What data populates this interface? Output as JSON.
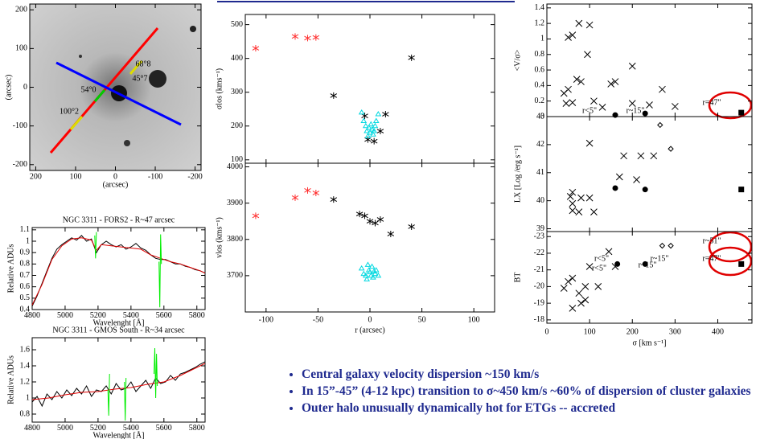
{
  "chart_data": [
    {
      "type": "image",
      "xlabel": "(arcsec)",
      "ylabel": "(arcsec)",
      "xlim": [
        215,
        -215
      ],
      "ylim": [
        -215,
        215
      ],
      "xticks": [
        200,
        100,
        0,
        -100,
        -200
      ],
      "yticks": [
        -200,
        -100,
        0,
        100,
        200
      ],
      "labels": [
        "68°8",
        "45°7",
        "54°0",
        "100°2"
      ]
    },
    {
      "type": "line",
      "title": "NGC 3311 - FORS2 - R~47 arcsec",
      "xlabel": "Wavelenght [Å]",
      "ylabel": "Relative ADUs",
      "xlim": [
        4800,
        5850
      ],
      "ylim": [
        0.4,
        1.12
      ],
      "xticks": [
        4800,
        5000,
        5200,
        5400,
        5600,
        5800
      ],
      "yticks": [
        0.4,
        0.5,
        0.6,
        0.7,
        0.8,
        0.9,
        1.0,
        1.1
      ],
      "series": [
        {
          "color": "#000000",
          "x": [
            4800,
            4830,
            4860,
            4890,
            4920,
            4950,
            4980,
            5010,
            5040,
            5070,
            5100,
            5130,
            5160,
            5190,
            5220,
            5250,
            5280,
            5310,
            5340,
            5370,
            5400,
            5430,
            5460,
            5490,
            5520,
            5550,
            5580,
            5610,
            5640,
            5670,
            5700,
            5730,
            5760,
            5790,
            5820,
            5850
          ],
          "y": [
            0.43,
            0.52,
            0.63,
            0.74,
            0.85,
            0.93,
            0.97,
            1.0,
            1.03,
            1.01,
            1.05,
            1.0,
            1.02,
            0.9,
            0.97,
            1.0,
            0.97,
            0.95,
            0.97,
            0.93,
            0.95,
            0.98,
            0.94,
            0.92,
            0.88,
            0.85,
            0.84,
            0.84,
            0.82,
            0.8,
            0.8,
            0.78,
            0.77,
            0.75,
            0.74,
            0.72
          ]
        },
        {
          "color": "#e00000",
          "x": [
            4800,
            4860,
            4920,
            4980,
            5040,
            5100,
            5160,
            5190,
            5220,
            5280,
            5340,
            5400,
            5460,
            5520,
            5580,
            5640,
            5700,
            5760,
            5820,
            5850
          ],
          "y": [
            0.44,
            0.62,
            0.84,
            0.96,
            1.02,
            1.03,
            1.01,
            0.92,
            0.97,
            0.96,
            0.95,
            0.94,
            0.93,
            0.88,
            0.85,
            0.82,
            0.8,
            0.77,
            0.74,
            0.72
          ]
        },
        {
          "color": "#00ee00",
          "x": [
            5180,
            5185,
            5190,
            null,
            5570,
            5575,
            5580,
            5585
          ],
          "y": [
            1.05,
            0.85,
            1.08,
            null,
            0.82,
            0.42,
            1.06,
            0.8
          ]
        }
      ]
    },
    {
      "type": "line",
      "title": "NGC 3311 - GMOS South - R~34 arcsec",
      "xlabel": "Wavelenght [Å]",
      "ylabel": "Relative ADUs",
      "xlim": [
        4800,
        5850
      ],
      "ylim": [
        0.7,
        1.75
      ],
      "xticks": [
        4800,
        5000,
        5200,
        5400,
        5600,
        5800
      ],
      "yticks": [
        0.8,
        1.0,
        1.2,
        1.4,
        1.6
      ],
      "series": [
        {
          "color": "#000000",
          "x": [
            4800,
            4830,
            4860,
            4890,
            4920,
            4950,
            4980,
            5010,
            5040,
            5070,
            5100,
            5130,
            5160,
            5190,
            5220,
            5250,
            5280,
            5310,
            5340,
            5370,
            5400,
            5430,
            5460,
            5490,
            5520,
            5550,
            5580,
            5610,
            5640,
            5670,
            5700,
            5730,
            5760,
            5790,
            5820,
            5850
          ],
          "y": [
            0.95,
            1.02,
            0.9,
            1.05,
            0.98,
            1.08,
            1.0,
            1.1,
            1.03,
            1.12,
            1.05,
            1.15,
            1.02,
            1.1,
            1.08,
            1.15,
            1.05,
            1.18,
            1.1,
            1.12,
            1.2,
            1.08,
            1.15,
            1.22,
            1.12,
            1.25,
            1.18,
            1.2,
            1.28,
            1.22,
            1.3,
            1.32,
            1.35,
            1.38,
            1.42,
            1.45
          ]
        },
        {
          "color": "#e00000",
          "x": [
            4800,
            4900,
            5000,
            5100,
            5200,
            5300,
            5400,
            5500,
            5600,
            5700,
            5800,
            5850
          ],
          "y": [
            0.98,
            1.0,
            1.04,
            1.07,
            1.08,
            1.11,
            1.13,
            1.17,
            1.2,
            1.28,
            1.38,
            1.43
          ]
        },
        {
          "color": "#00ee00",
          "x": [
            5260,
            5265,
            5270,
            null,
            5360,
            5365,
            5370,
            null,
            5540,
            5545,
            5550,
            5555,
            5560
          ],
          "y": [
            1.1,
            0.78,
            1.3,
            null,
            1.2,
            0.72,
            1.25,
            null,
            1.3,
            1.62,
            1.0,
            1.55,
            1.15
          ]
        }
      ]
    },
    {
      "type": "scatter",
      "ylabel": "σlos (kms⁻¹)",
      "show_xtick_labels": false,
      "xlim": [
        -120,
        120
      ],
      "ylim": [
        90,
        530
      ],
      "xticks": [
        -100,
        -50,
        0,
        50,
        100
      ],
      "yticks": [
        100,
        200,
        300,
        400,
        500
      ],
      "series": [
        {
          "color": "#ff3030",
          "marker": "star",
          "x": [
            -110,
            -72,
            -60,
            -52
          ],
          "y": [
            430,
            465,
            460,
            462
          ]
        },
        {
          "color": "#000000",
          "marker": "star",
          "x": [
            -35,
            -5,
            -2,
            4,
            10,
            15,
            40
          ],
          "y": [
            290,
            230,
            160,
            155,
            185,
            235,
            402
          ]
        },
        {
          "color": "#00d8e0",
          "marker": "triangle",
          "x": [
            -8,
            -6,
            -4,
            -3,
            -1,
            0,
            1,
            2,
            3,
            5,
            6,
            8,
            -2,
            4
          ],
          "y": [
            240,
            215,
            200,
            185,
            195,
            180,
            205,
            190,
            175,
            200,
            215,
            235,
            170,
            185
          ]
        }
      ]
    },
    {
      "type": "scatter",
      "xlabel": "r (arcsec)",
      "ylabel": "vlos (kms⁻¹)",
      "xlim": [
        -120,
        120
      ],
      "ylim": [
        3600,
        4010
      ],
      "xticks": [
        -100,
        -50,
        0,
        50,
        100
      ],
      "yticks": [
        3700,
        3800,
        3900,
        4000
      ],
      "series": [
        {
          "color": "#ff3030",
          "marker": "star",
          "x": [
            -110,
            -72,
            -60,
            -52
          ],
          "y": [
            3865,
            3915,
            3935,
            3928
          ]
        },
        {
          "color": "#000000",
          "marker": "star",
          "x": [
            -35,
            -10,
            -5,
            0,
            5,
            10,
            20,
            40
          ],
          "y": [
            3910,
            3870,
            3865,
            3850,
            3845,
            3855,
            3815,
            3835
          ]
        },
        {
          "color": "#00d8e0",
          "marker": "triangle",
          "x": [
            -8,
            -6,
            -4,
            -3,
            -1,
            0,
            1,
            2,
            3,
            5,
            6,
            8,
            -2,
            4
          ],
          "y": [
            3720,
            3705,
            3700,
            3690,
            3715,
            3710,
            3700,
            3725,
            3695,
            3705,
            3715,
            3700,
            3730,
            3712
          ]
        }
      ]
    },
    {
      "type": "scatter",
      "ylabel": "<V/σ>",
      "show_xtick_labels": false,
      "xlim": [
        0,
        480
      ],
      "ylim": [
        0,
        1.45
      ],
      "xticks": [
        0,
        100,
        200,
        300,
        400
      ],
      "yticks": [
        0.0,
        0.2,
        0.4,
        0.6,
        0.8,
        1.0,
        1.2,
        1.4
      ],
      "labels": [
        "r=47\"",
        "r<5\"",
        "r~15\""
      ],
      "series": [
        {
          "color": "#000000",
          "marker": "x",
          "x": [
            50,
            60,
            75,
            95,
            100,
            70,
            80,
            50,
            40,
            60,
            45,
            110,
            150,
            160,
            200,
            270,
            240,
            200,
            130,
            300
          ],
          "y": [
            1.02,
            1.05,
            1.2,
            0.8,
            1.18,
            0.48,
            0.45,
            0.35,
            0.3,
            0.18,
            0.17,
            0.2,
            0.42,
            0.45,
            0.65,
            0.35,
            0.15,
            0.17,
            0.12,
            0.13
          ]
        },
        {
          "color": "#000000",
          "marker": "dot",
          "x": [
            160,
            230
          ],
          "y": [
            0.02,
            0.04
          ]
        },
        {
          "color": "#000000",
          "marker": "square",
          "x": [
            455
          ],
          "y": [
            0.05
          ]
        }
      ]
    },
    {
      "type": "scatter",
      "ylabel": "LX [Log /erg s⁻¹]",
      "show_xtick_labels": false,
      "xlim": [
        0,
        480
      ],
      "ylim": [
        38.9,
        43
      ],
      "xticks": [
        0,
        100,
        200,
        300,
        400
      ],
      "yticks": [
        39,
        40,
        41,
        42,
        43
      ],
      "labels": [
        "r~51\"",
        "r<5\"",
        "r~15\""
      ],
      "series": [
        {
          "color": "#000000",
          "marker": "x",
          "x": [
            100,
            180,
            220,
            250,
            170,
            210,
            60,
            55,
            80,
            100,
            60,
            60,
            75,
            110
          ],
          "y": [
            42.05,
            41.6,
            41.6,
            41.6,
            40.85,
            40.75,
            40.3,
            40.15,
            40.1,
            40.1,
            39.9,
            39.65,
            39.6,
            39.6
          ]
        },
        {
          "color": "#000000",
          "marker": "diamond",
          "x": [
            265,
            290
          ],
          "y": [
            42.7,
            41.85
          ]
        },
        {
          "color": "#000000",
          "marker": "dot",
          "x": [
            160,
            230
          ],
          "y": [
            40.45,
            40.4
          ]
        },
        {
          "color": "#000000",
          "marker": "square",
          "x": [
            455
          ],
          "y": [
            40.4
          ]
        }
      ]
    },
    {
      "type": "scatter",
      "xlabel": "σ [km s⁻¹]",
      "ylabel": "BT",
      "xlim": [
        0,
        480
      ],
      "ylim": [
        -17.8,
        -23.3
      ],
      "xticks": [
        0,
        100,
        200,
        300,
        400
      ],
      "yticks": [
        -18,
        -19,
        -20,
        -21,
        -22,
        -23
      ],
      "labels": [
        "r=47\"",
        "r<5\"",
        "r~15\""
      ],
      "series": [
        {
          "color": "#000000",
          "marker": "x",
          "x": [
            145,
            100,
            60,
            50,
            90,
            120,
            40,
            75,
            80,
            90,
            60,
            160
          ],
          "y": [
            -22.1,
            -21.2,
            -20.5,
            -20.3,
            -20.0,
            -20.0,
            -19.9,
            -19.6,
            -19.0,
            -19.2,
            -18.7,
            -21.2
          ]
        },
        {
          "color": "#000000",
          "marker": "diamond",
          "x": [
            270,
            290
          ],
          "y": [
            -22.45,
            -22.45
          ]
        },
        {
          "color": "#000000",
          "marker": "dot",
          "x": [
            165,
            230
          ],
          "y": [
            -21.35,
            -21.35
          ]
        },
        {
          "color": "#000000",
          "marker": "square",
          "x": [
            455
          ],
          "y": [
            -21.35
          ]
        }
      ]
    }
  ],
  "bullets": [
    "Central galaxy velocity dispersion ~150 km/s",
    "In 15”-45” (4-12 kpc) transition to σ~450 km/s ~60% of dispersion of cluster galaxies",
    "Outer halo unusually dynamically hot for ETGs -- accreted"
  ]
}
